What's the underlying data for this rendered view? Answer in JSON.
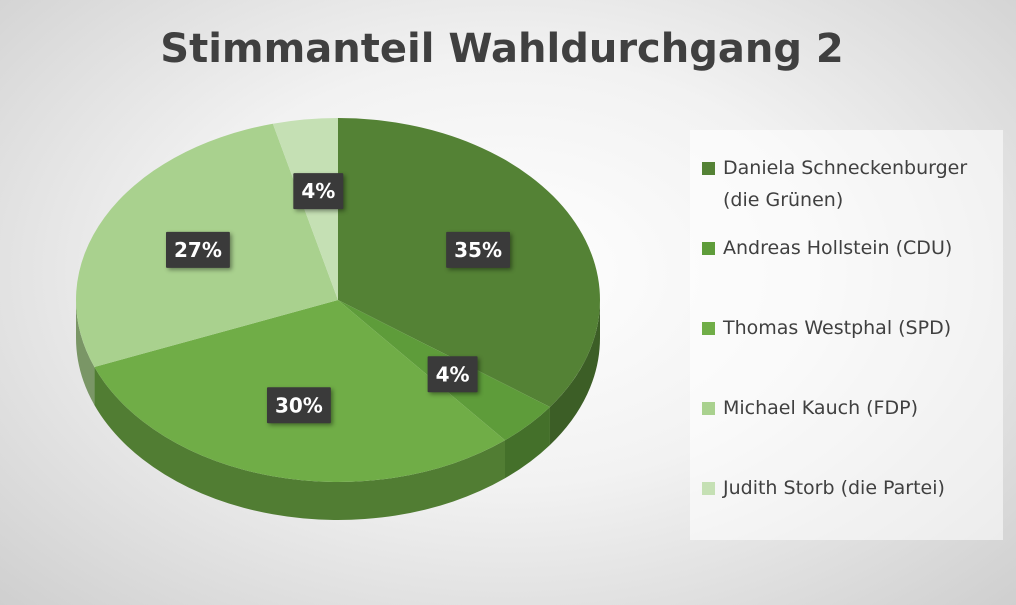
{
  "chart_data": {
    "type": "pie",
    "title": "Stimmanteil Wahldurchgang 2",
    "categories": [
      "Daniela Schneckenburger (die Grünen)",
      "Andreas Hollstein (CDU)",
      "Thomas Westphal (SPD)",
      "Michael Kauch (FDP)",
      "Judith Storb (die Partei)"
    ],
    "values": [
      35,
      4,
      30,
      27,
      4
    ],
    "value_labels": [
      "35%",
      "4%",
      "30%",
      "27%",
      "4%"
    ],
    "colors": [
      "#548235",
      "#5e9c3a",
      "#70ad47",
      "#a9d18e",
      "#c5e0b4"
    ],
    "legend": "right"
  }
}
